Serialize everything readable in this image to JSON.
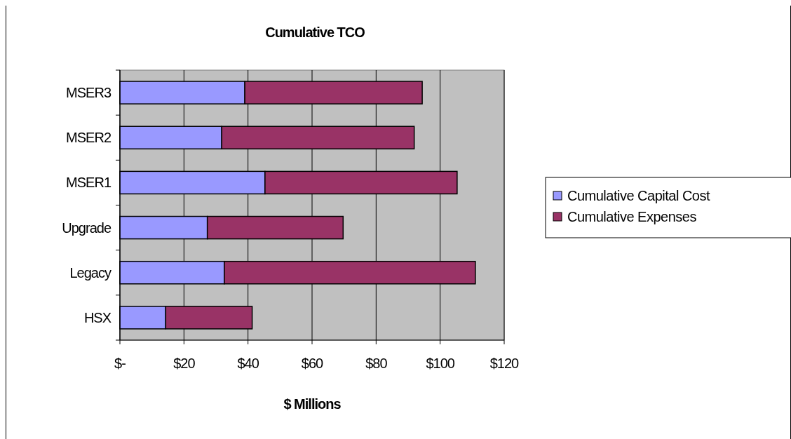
{
  "chart_data": {
    "type": "bar",
    "orientation": "horizontal",
    "stacked": true,
    "title": "Cumulative TCO",
    "xlabel": "$ Millions",
    "categories": [
      "MSER3",
      "MSER2",
      "MSER1",
      "Upgrade",
      "Legacy",
      "HSX"
    ],
    "series": [
      {
        "name": "Cumulative Capital Cost",
        "color": "#9999ff",
        "values": [
          39.0,
          31.8,
          45.3,
          27.3,
          32.6,
          14.3
        ]
      },
      {
        "name": "Cumulative Expenses",
        "color": "#993366",
        "values": [
          55.4,
          60.1,
          60.0,
          42.4,
          78.4,
          27.0
        ]
      }
    ],
    "xlim": [
      0,
      120
    ],
    "xticks": [
      {
        "value": 0,
        "label": "$-"
      },
      {
        "value": 20,
        "label": "$20"
      },
      {
        "value": 40,
        "label": "$40"
      },
      {
        "value": 60,
        "label": "$60"
      },
      {
        "value": 80,
        "label": "$80"
      },
      {
        "value": 100,
        "label": "$100"
      },
      {
        "value": 120,
        "label": "$120"
      }
    ],
    "grid": "x",
    "legend": "right"
  }
}
